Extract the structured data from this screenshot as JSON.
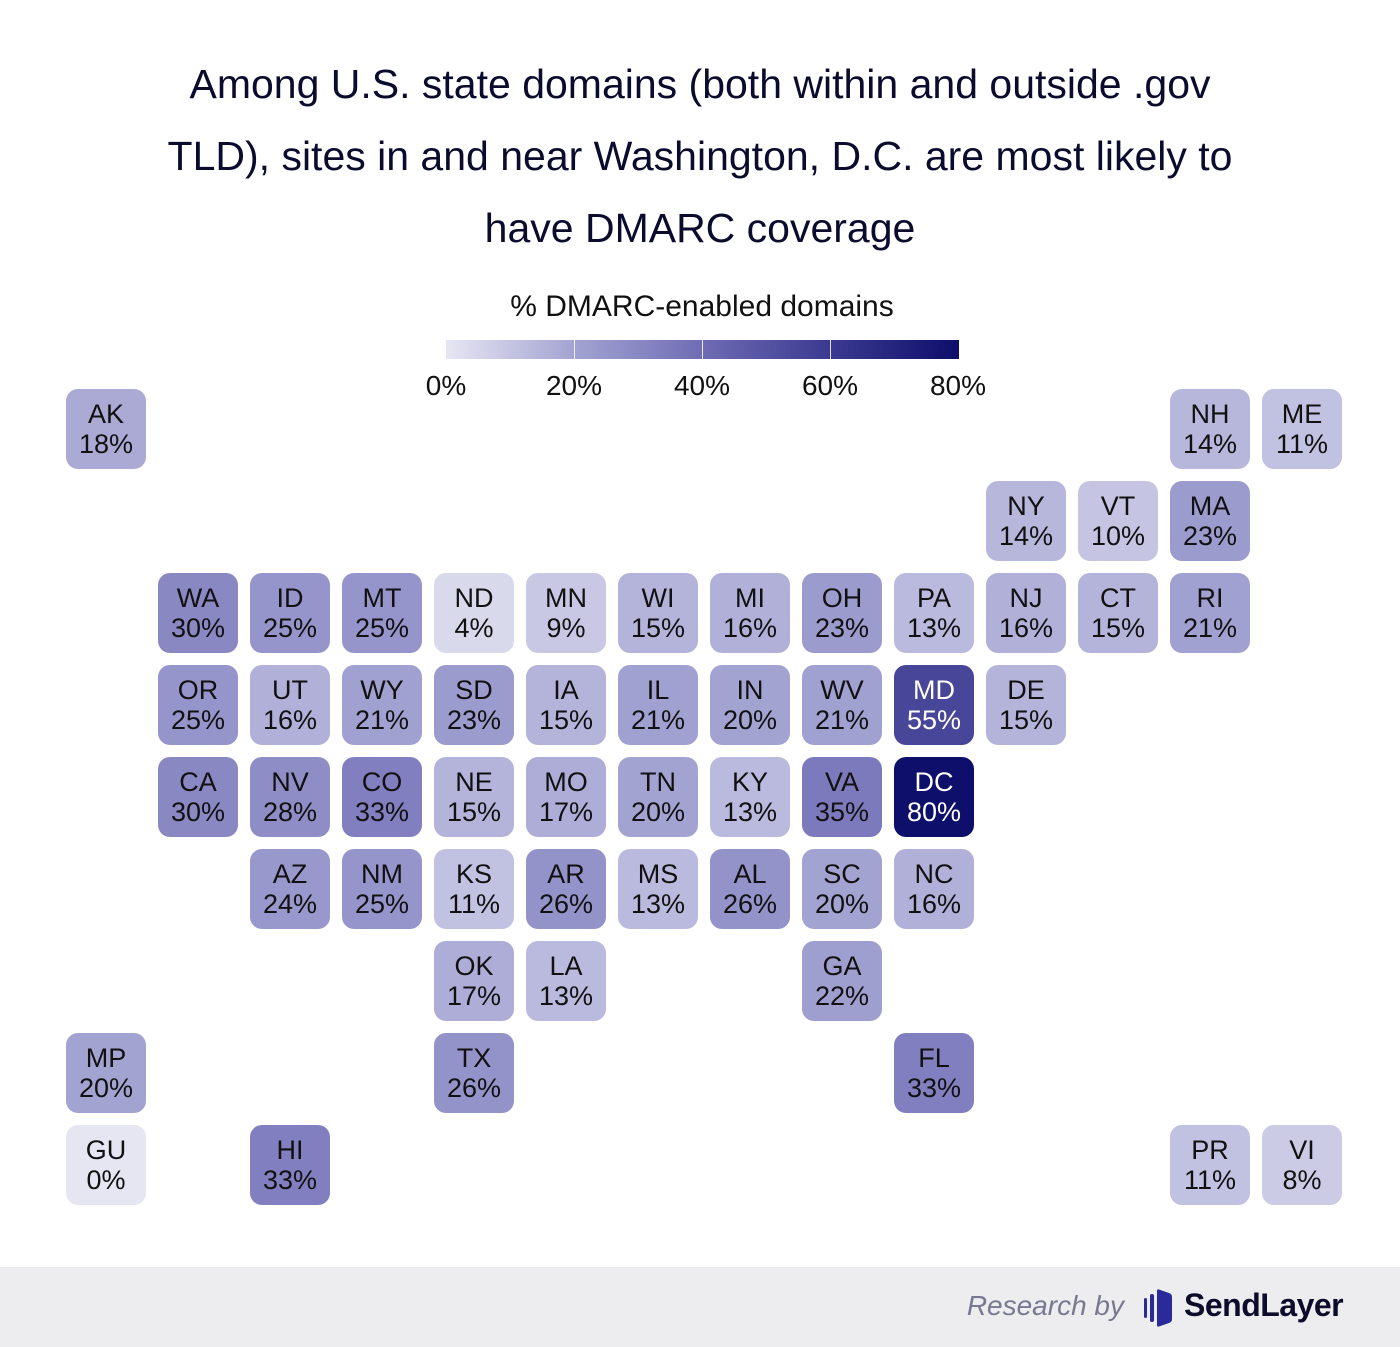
{
  "title": "Among U.S. state domains (both within and outside .gov TLD), sites in and near Washington, D.C. are most likely to have DMARC coverage",
  "title_lines": [
    "Among U.S. state domains (both within and outside .gov",
    "TLD), sites in and near Washington, D.C. are most likely to",
    "have DMARC coverage"
  ],
  "legend": {
    "title": "% DMARC-enabled domains",
    "ticks": [
      "0%",
      "20%",
      "40%",
      "60%",
      "80%"
    ],
    "min_color": "#e6e6f3",
    "max_color": "#0e0e6b"
  },
  "footer": {
    "research_by": "Research by",
    "brand": "SendLayer",
    "brand_color": "#2b2a9a"
  },
  "chart_data": {
    "type": "heatmap",
    "subtype": "tile-grid-map",
    "title": "Among U.S. state domains (both within and outside .gov TLD), sites in and near Washington, D.C. are most likely to have DMARC coverage",
    "legend_title": "% DMARC-enabled domains",
    "color_range": [
      0,
      80
    ],
    "tiles": [
      {
        "state": "AK",
        "value": 18,
        "label": "18%",
        "col": 0,
        "row": 0
      },
      {
        "state": "NH",
        "value": 14,
        "label": "14%",
        "col": 12,
        "row": 0
      },
      {
        "state": "ME",
        "value": 11,
        "label": "11%",
        "col": 13,
        "row": 0
      },
      {
        "state": "NY",
        "value": 14,
        "label": "14%",
        "col": 10,
        "row": 1
      },
      {
        "state": "VT",
        "value": 10,
        "label": "10%",
        "col": 11,
        "row": 1
      },
      {
        "state": "MA",
        "value": 23,
        "label": "23%",
        "col": 12,
        "row": 1
      },
      {
        "state": "WA",
        "value": 30,
        "label": "30%",
        "col": 1,
        "row": 2
      },
      {
        "state": "ID",
        "value": 25,
        "label": "25%",
        "col": 2,
        "row": 2
      },
      {
        "state": "MT",
        "value": 25,
        "label": "25%",
        "col": 3,
        "row": 2
      },
      {
        "state": "ND",
        "value": 4,
        "label": "4%",
        "col": 4,
        "row": 2
      },
      {
        "state": "MN",
        "value": 9,
        "label": "9%",
        "col": 5,
        "row": 2
      },
      {
        "state": "WI",
        "value": 15,
        "label": "15%",
        "col": 6,
        "row": 2
      },
      {
        "state": "MI",
        "value": 16,
        "label": "16%",
        "col": 7,
        "row": 2
      },
      {
        "state": "OH",
        "value": 23,
        "label": "23%",
        "col": 8,
        "row": 2
      },
      {
        "state": "PA",
        "value": 13,
        "label": "13%",
        "col": 9,
        "row": 2
      },
      {
        "state": "NJ",
        "value": 16,
        "label": "16%",
        "col": 10,
        "row": 2
      },
      {
        "state": "CT",
        "value": 15,
        "label": "15%",
        "col": 11,
        "row": 2
      },
      {
        "state": "RI",
        "value": 21,
        "label": "21%",
        "col": 12,
        "row": 2
      },
      {
        "state": "OR",
        "value": 25,
        "label": "25%",
        "col": 1,
        "row": 3
      },
      {
        "state": "UT",
        "value": 16,
        "label": "16%",
        "col": 2,
        "row": 3
      },
      {
        "state": "WY",
        "value": 21,
        "label": "21%",
        "col": 3,
        "row": 3
      },
      {
        "state": "SD",
        "value": 23,
        "label": "23%",
        "col": 4,
        "row": 3
      },
      {
        "state": "IA",
        "value": 15,
        "label": "15%",
        "col": 5,
        "row": 3
      },
      {
        "state": "IL",
        "value": 21,
        "label": "21%",
        "col": 6,
        "row": 3
      },
      {
        "state": "IN",
        "value": 20,
        "label": "20%",
        "col": 7,
        "row": 3
      },
      {
        "state": "WV",
        "value": 21,
        "label": "21%",
        "col": 8,
        "row": 3
      },
      {
        "state": "MD",
        "value": 55,
        "label": "55%",
        "col": 9,
        "row": 3
      },
      {
        "state": "DE",
        "value": 15,
        "label": "15%",
        "col": 10,
        "row": 3
      },
      {
        "state": "CA",
        "value": 30,
        "label": "30%",
        "col": 1,
        "row": 4
      },
      {
        "state": "NV",
        "value": 28,
        "label": "28%",
        "col": 2,
        "row": 4
      },
      {
        "state": "CO",
        "value": 33,
        "label": "33%",
        "col": 3,
        "row": 4
      },
      {
        "state": "NE",
        "value": 15,
        "label": "15%",
        "col": 4,
        "row": 4
      },
      {
        "state": "MO",
        "value": 17,
        "label": "17%",
        "col": 5,
        "row": 4
      },
      {
        "state": "TN",
        "value": 20,
        "label": "20%",
        "col": 6,
        "row": 4
      },
      {
        "state": "KY",
        "value": 13,
        "label": "13%",
        "col": 7,
        "row": 4
      },
      {
        "state": "VA",
        "value": 35,
        "label": "35%",
        "col": 8,
        "row": 4
      },
      {
        "state": "DC",
        "value": 80,
        "label": "80%",
        "col": 9,
        "row": 4
      },
      {
        "state": "AZ",
        "value": 24,
        "label": "24%",
        "col": 2,
        "row": 5
      },
      {
        "state": "NM",
        "value": 25,
        "label": "25%",
        "col": 3,
        "row": 5
      },
      {
        "state": "KS",
        "value": 11,
        "label": "11%",
        "col": 4,
        "row": 5
      },
      {
        "state": "AR",
        "value": 26,
        "label": "26%",
        "col": 5,
        "row": 5
      },
      {
        "state": "MS",
        "value": 13,
        "label": "13%",
        "col": 6,
        "row": 5
      },
      {
        "state": "AL",
        "value": 26,
        "label": "26%",
        "col": 7,
        "row": 5
      },
      {
        "state": "SC",
        "value": 20,
        "label": "20%",
        "col": 8,
        "row": 5
      },
      {
        "state": "NC",
        "value": 16,
        "label": "16%",
        "col": 9,
        "row": 5
      },
      {
        "state": "OK",
        "value": 17,
        "label": "17%",
        "col": 4,
        "row": 6
      },
      {
        "state": "LA",
        "value": 13,
        "label": "13%",
        "col": 5,
        "row": 6
      },
      {
        "state": "GA",
        "value": 22,
        "label": "22%",
        "col": 8,
        "row": 6
      },
      {
        "state": "MP",
        "value": 20,
        "label": "20%",
        "col": 0,
        "row": 7
      },
      {
        "state": "TX",
        "value": 26,
        "label": "26%",
        "col": 4,
        "row": 7
      },
      {
        "state": "FL",
        "value": 33,
        "label": "33%",
        "col": 9,
        "row": 7
      },
      {
        "state": "GU",
        "value": 0,
        "label": "0%",
        "col": 0,
        "row": 8
      },
      {
        "state": "HI",
        "value": 33,
        "label": "33%",
        "col": 2,
        "row": 8
      },
      {
        "state": "PR",
        "value": 11,
        "label": "11%",
        "col": 12,
        "row": 8
      },
      {
        "state": "VI",
        "value": 8,
        "label": "8%",
        "col": 13,
        "row": 8
      }
    ]
  }
}
